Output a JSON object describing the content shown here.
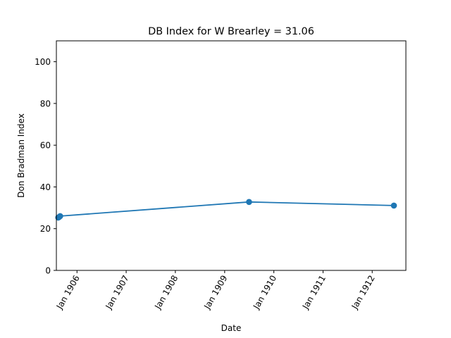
{
  "chart_data": {
    "type": "line",
    "title": "DB Index for W Brearley = 31.06",
    "xlabel": "Date",
    "ylabel": "Don Bradman Index",
    "xlim": [
      "1905-08-01",
      "1912-09-07"
    ],
    "ylim": [
      0,
      110
    ],
    "x_ticks": [
      {
        "date": "1906-01-01",
        "label": "Jan 1906"
      },
      {
        "date": "1907-01-01",
        "label": "Jan 1907"
      },
      {
        "date": "1908-01-01",
        "label": "Jan 1908"
      },
      {
        "date": "1909-01-01",
        "label": "Jan 1909"
      },
      {
        "date": "1910-01-01",
        "label": "Jan 1910"
      },
      {
        "date": "1911-01-01",
        "label": "Jan 1911"
      },
      {
        "date": "1912-01-01",
        "label": "Jan 1912"
      }
    ],
    "y_ticks": [
      0,
      20,
      40,
      60,
      80,
      100
    ],
    "series": [
      {
        "color": "#1f77b4",
        "points": [
          {
            "x": "1905-08-15",
            "y": 25.3
          },
          {
            "x": "1905-08-22",
            "y": 25.6
          },
          {
            "x": "1905-08-29",
            "y": 26.0
          },
          {
            "x": "1909-07-01",
            "y": 32.8
          },
          {
            "x": "1912-06-10",
            "y": 31.06
          }
        ]
      }
    ],
    "grid": false,
    "legend": "none"
  }
}
